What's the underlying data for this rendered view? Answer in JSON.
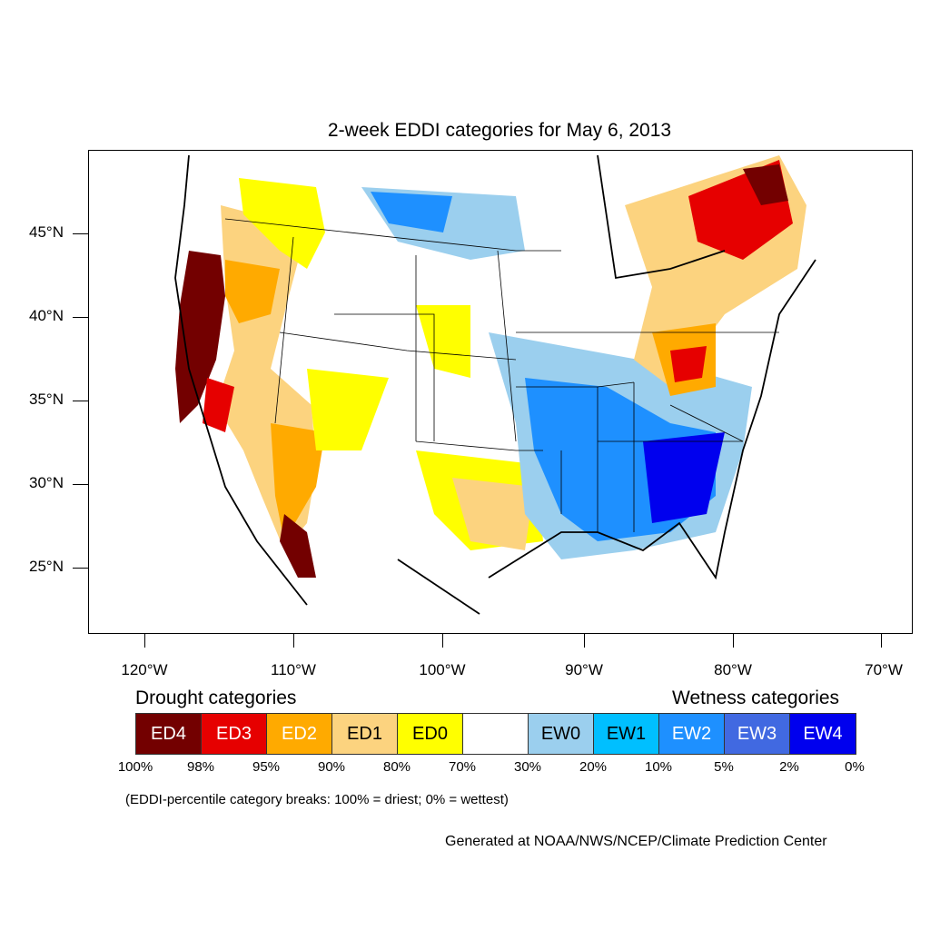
{
  "title": "2-week EDDI categories for May 6, 2013",
  "lat_labels": [
    "45°N",
    "40°N",
    "35°N",
    "30°N",
    "25°N"
  ],
  "lon_labels": [
    "120°W",
    "110°W",
    "100°W",
    "90°W",
    "80°W",
    "70°W"
  ],
  "legend": {
    "drought_heading": "Drought categories",
    "wetness_heading": "Wetness categories",
    "categories": [
      {
        "label": "ED4",
        "color": "#730000",
        "text_color": "#ffffff"
      },
      {
        "label": "ED3",
        "color": "#e60000",
        "text_color": "#ffffff"
      },
      {
        "label": "ED2",
        "color": "#ffaa00",
        "text_color": "#ffffff"
      },
      {
        "label": "ED1",
        "color": "#fcd37f",
        "text_color": "#000000"
      },
      {
        "label": "ED0",
        "color": "#ffff00",
        "text_color": "#000000"
      },
      {
        "label": "",
        "color": "#ffffff",
        "text_color": "#000000"
      },
      {
        "label": "EW0",
        "color": "#9bcfee",
        "text_color": "#000000"
      },
      {
        "label": "EW1",
        "color": "#00bfff",
        "text_color": "#000000"
      },
      {
        "label": "EW2",
        "color": "#1e90ff",
        "text_color": "#ffffff"
      },
      {
        "label": "EW3",
        "color": "#4169e1",
        "text_color": "#ffffff"
      },
      {
        "label": "EW4",
        "color": "#0000ee",
        "text_color": "#ffffff"
      }
    ],
    "percent_breaks": [
      "100%",
      "98%",
      "95%",
      "90%",
      "80%",
      "70%",
      "30%",
      "20%",
      "10%",
      "5%",
      "2%",
      "0%"
    ]
  },
  "footnote": "(EDDI-percentile category breaks: 100% = driest; 0% = wettest)",
  "credit": "Generated at NOAA/NWS/NCEP/Climate Prediction Center"
}
